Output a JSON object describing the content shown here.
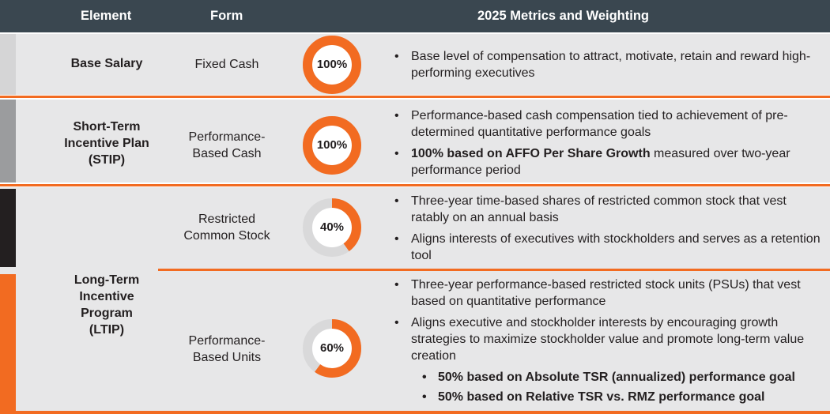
{
  "header": {
    "element": "Element",
    "form": "Form",
    "metrics": "2025 Metrics and Weighting"
  },
  "colors": {
    "accent": "#f26b21",
    "header_bg": "#3a4750",
    "band_bg": "#e7e7e8",
    "ring_track": "#d9d9da",
    "stripe_base": "#d5d5d6",
    "stripe_stip": "#9b9c9e",
    "stripe_rcs": "#231f20",
    "stripe_ltip": "#f26b21"
  },
  "rows": {
    "base": {
      "element": "Base Salary",
      "form": "Fixed Cash",
      "percent": 100,
      "percent_label": "100%",
      "bullets": [
        "Base level of compensation to attract, motivate, retain and reward high-performing executives"
      ]
    },
    "stip": {
      "element_lines": [
        "Short-Term",
        "Incentive Plan",
        "(STIP)"
      ],
      "form_lines": [
        "Performance-",
        "Based Cash"
      ],
      "percent": 100,
      "percent_label": "100%",
      "bullet1": "Performance-based cash compensation tied to achievement of pre-determined quantitative performance goals",
      "bullet2_bold": "100% based on AFFO Per Share Growth",
      "bullet2_rest": " measured over two-year performance period"
    },
    "rcs": {
      "form_lines": [
        "Restricted",
        "Common Stock"
      ],
      "percent": 40,
      "percent_label": "40%",
      "bullets": [
        "Three-year time-based shares of restricted common stock that vest ratably on an annual basis",
        "Aligns interests of executives with stockholders and serves as a retention tool"
      ]
    },
    "ltip": {
      "element_lines": [
        "Long-Term",
        "Incentive",
        "Program",
        "(LTIP)"
      ]
    },
    "psu": {
      "form_lines": [
        "Performance-",
        "Based Units"
      ],
      "percent": 60,
      "percent_label": "60%",
      "bullets": [
        "Three-year performance-based restricted stock units (PSUs) that vest based on quantitative performance",
        "Aligns executive and stockholder interests by encouraging growth strategies to maximize stockholder value and promote long-term value creation"
      ],
      "sub_bullets": [
        "50% based on Absolute TSR (annualized) performance goal",
        "50% based on Relative TSR vs. RMZ performance goal"
      ]
    }
  }
}
